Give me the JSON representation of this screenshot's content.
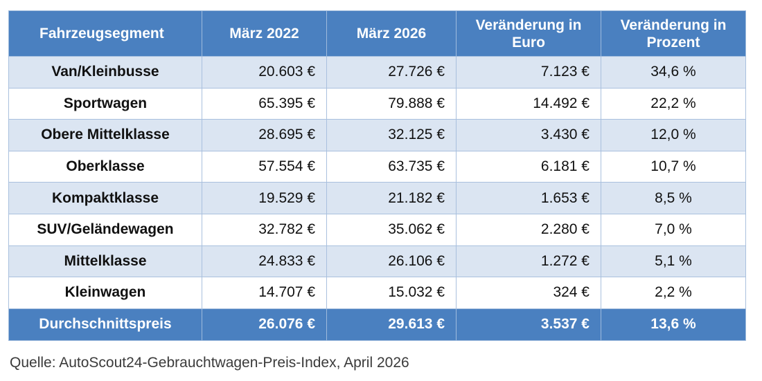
{
  "table": {
    "headers": [
      "Fahrzeugsegment",
      "März 2022",
      "März 2026",
      "Veränderung in Euro",
      "Veränderung in Prozent"
    ],
    "rows": [
      {
        "segment": "Van/Kleinbusse",
        "m2022": "20.603 €",
        "m2026": "27.726 €",
        "diff_eur": "7.123 €",
        "diff_pct": "34,6 %"
      },
      {
        "segment": "Sportwagen",
        "m2022": "65.395 €",
        "m2026": "79.888 €",
        "diff_eur": "14.492 €",
        "diff_pct": "22,2 %"
      },
      {
        "segment": "Obere Mittelklasse",
        "m2022": "28.695 €",
        "m2026": "32.125 €",
        "diff_eur": "3.430 €",
        "diff_pct": "12,0 %"
      },
      {
        "segment": "Oberklasse",
        "m2022": "57.554 €",
        "m2026": "63.735 €",
        "diff_eur": "6.181 €",
        "diff_pct": "10,7 %"
      },
      {
        "segment": "Kompaktklasse",
        "m2022": "19.529 €",
        "m2026": "21.182 €",
        "diff_eur": "1.653 €",
        "diff_pct": "8,5 %"
      },
      {
        "segment": "SUV/Geländewagen",
        "m2022": "32.782 €",
        "m2026": "35.062 €",
        "diff_eur": "2.280 €",
        "diff_pct": "7,0 %"
      },
      {
        "segment": "Mittelklasse",
        "m2022": "24.833 €",
        "m2026": "26.106 €",
        "diff_eur": "1.272 €",
        "diff_pct": "5,1 %"
      },
      {
        "segment": "Kleinwagen",
        "m2022": "14.707 €",
        "m2026": "15.032 €",
        "diff_eur": "324 €",
        "diff_pct": "2,2 %"
      }
    ],
    "footer": {
      "segment": "Durchschnittspreis",
      "m2022": "26.076 €",
      "m2026": "29.613 €",
      "diff_eur": "3.537 €",
      "diff_pct": "13,6 %"
    }
  },
  "source": "Quelle: AutoScout24-Gebrauchtwagen-Preis-Index, April 2026",
  "colors": {
    "header_bg": "#4a80c0",
    "row_alt_bg": "#dbe5f2",
    "row_bg": "#ffffff"
  }
}
